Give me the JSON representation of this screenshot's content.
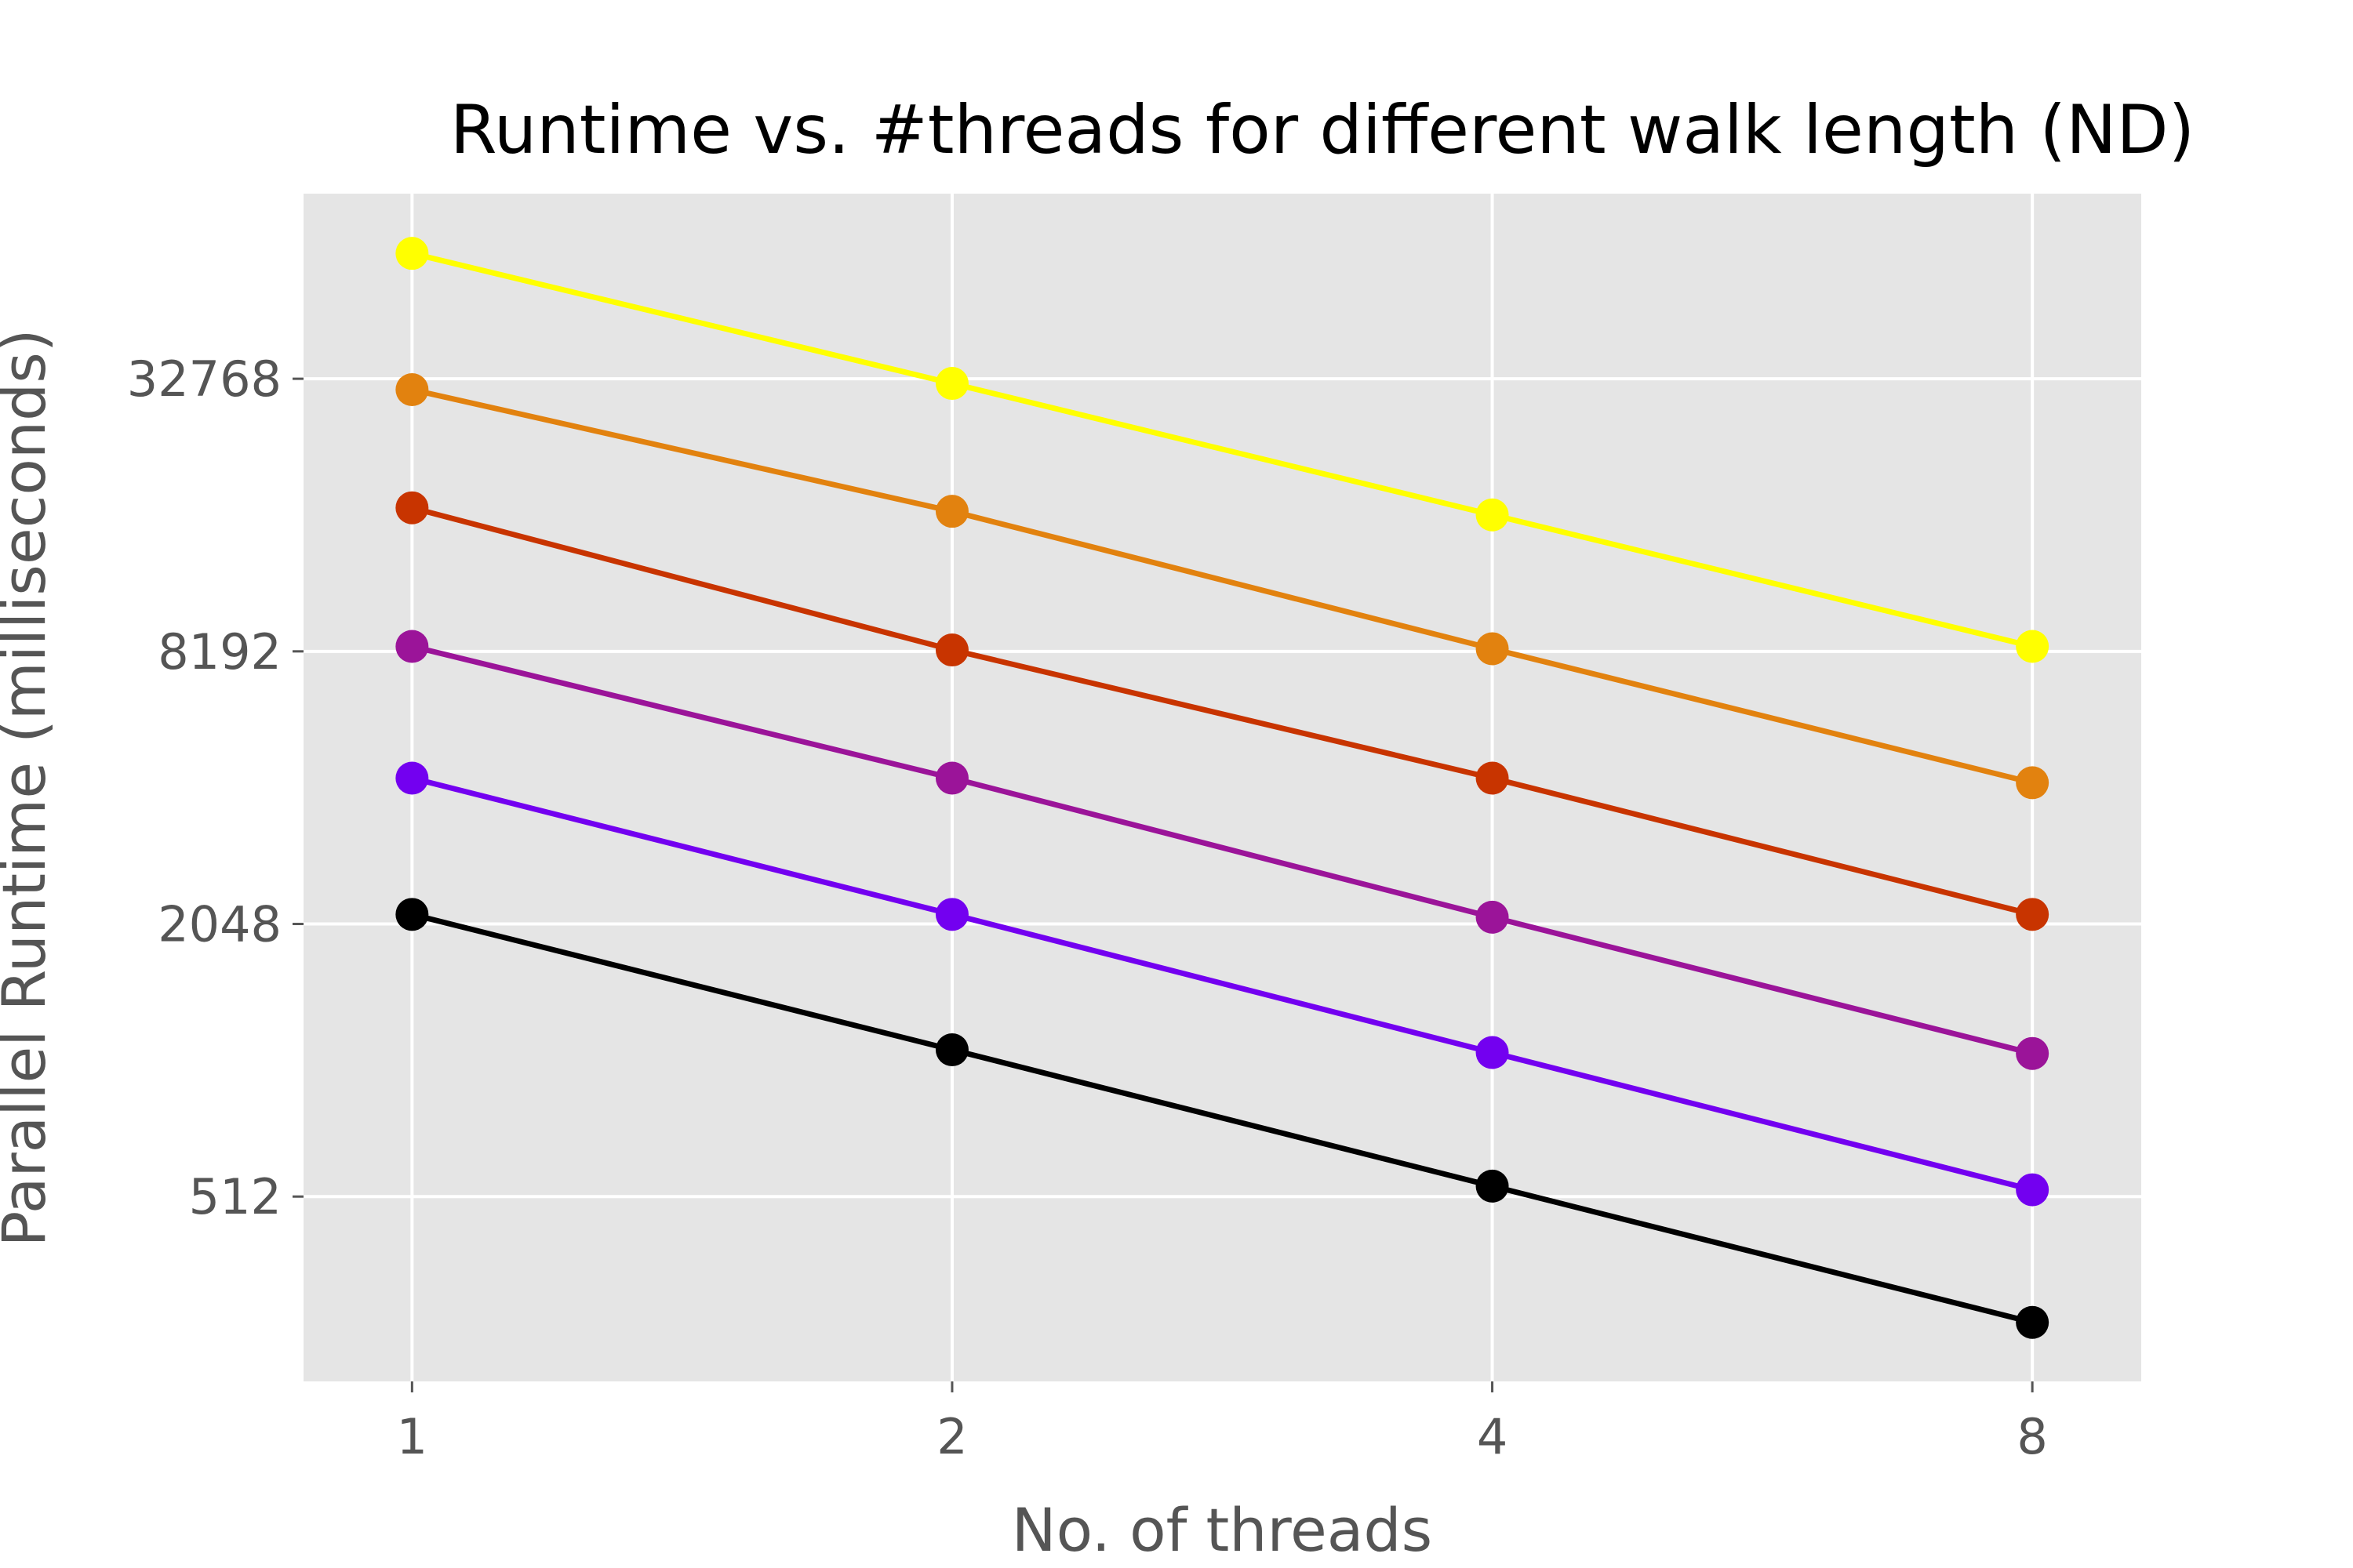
{
  "chart_data": {
    "type": "line",
    "title": "Runtime vs. #threads for different walk length (ND)",
    "xlabel": "No. of threads",
    "ylabel": "Parallel Runtime (milliseconds)",
    "x_scale": "log2",
    "y_scale": "log2",
    "x": [
      1,
      2,
      4,
      8
    ],
    "xticks": [
      1,
      2,
      4,
      8
    ],
    "xtick_labels": [
      "1",
      "2",
      "4",
      "8"
    ],
    "yticks": [
      512,
      2048,
      8192,
      32768
    ],
    "ytick_labels": [
      "512",
      "2048",
      "8192",
      "32768"
    ],
    "xlim": [
      0.87,
      9.2
    ],
    "ylim": [
      200,
      84000
    ],
    "grid": true,
    "background": "#e5e5e5",
    "series": [
      {
        "color": "#000000",
        "values": [
          2150,
          1080,
          540,
          270
        ]
      },
      {
        "color": "#7300f0",
        "values": [
          4300,
          2150,
          1065,
          530
        ]
      },
      {
        "color": "#9b1499",
        "values": [
          8400,
          4300,
          2120,
          1060
        ]
      },
      {
        "color": "#c83400",
        "values": [
          17000,
          8250,
          4300,
          2150
        ]
      },
      {
        "color": "#e2820f",
        "values": [
          31000,
          16700,
          8300,
          4200
        ]
      },
      {
        "color": "#ffff00",
        "values": [
          62000,
          32000,
          16400,
          8400
        ]
      }
    ]
  }
}
